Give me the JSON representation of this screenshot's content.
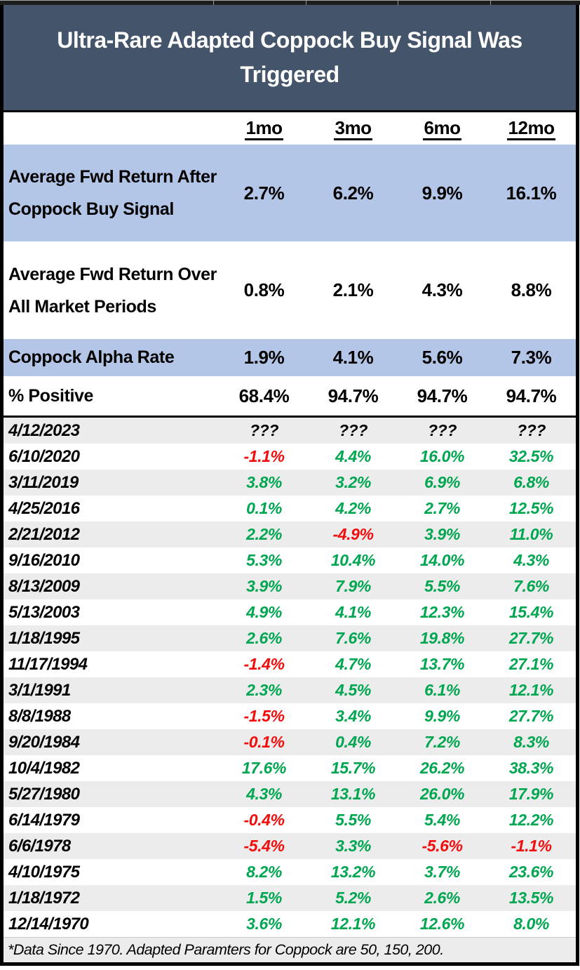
{
  "colors": {
    "header_bg": "#44546A",
    "blue_row": "#B4C6E7",
    "gray_row": "#ECECEC",
    "green": "#00A650",
    "red": "#F20D0D"
  },
  "chart_data": {
    "type": "table",
    "title": "Ultra-Rare Adapted Coppock Buy Signal Was Triggered",
    "columns": [
      "1mo",
      "3mo",
      "6mo",
      "12mo"
    ],
    "summary_rows": [
      {
        "label": "Average Fwd Return After Coppock Buy Signal",
        "values": [
          "2.7%",
          "6.2%",
          "9.9%",
          "16.1%"
        ],
        "highlighted": true
      },
      {
        "label": "Average Fwd Return Over All Market Periods",
        "values": [
          "0.8%",
          "2.1%",
          "4.3%",
          "8.8%"
        ],
        "highlighted": false
      },
      {
        "label": "Coppock Alpha Rate",
        "values": [
          "1.9%",
          "4.1%",
          "5.6%",
          "7.3%"
        ],
        "highlighted": true
      },
      {
        "label": "% Positive",
        "values": [
          "68.4%",
          "94.7%",
          "94.7%",
          "94.7%"
        ],
        "highlighted": false
      }
    ],
    "signal_rows": [
      {
        "date": "4/12/2023",
        "values": [
          "???",
          "???",
          "???",
          "???"
        ]
      },
      {
        "date": "6/10/2020",
        "values": [
          "-1.1%",
          "4.4%",
          "16.0%",
          "32.5%"
        ]
      },
      {
        "date": "3/11/2019",
        "values": [
          "3.8%",
          "3.2%",
          "6.9%",
          "6.8%"
        ]
      },
      {
        "date": "4/25/2016",
        "values": [
          "0.1%",
          "4.2%",
          "2.7%",
          "12.5%"
        ]
      },
      {
        "date": "2/21/2012",
        "values": [
          "2.2%",
          "-4.9%",
          "3.9%",
          "11.0%"
        ]
      },
      {
        "date": "9/16/2010",
        "values": [
          "5.3%",
          "10.4%",
          "14.0%",
          "4.3%"
        ]
      },
      {
        "date": "8/13/2009",
        "values": [
          "3.9%",
          "7.9%",
          "5.5%",
          "7.6%"
        ]
      },
      {
        "date": "5/13/2003",
        "values": [
          "4.9%",
          "4.1%",
          "12.3%",
          "15.4%"
        ]
      },
      {
        "date": "1/18/1995",
        "values": [
          "2.6%",
          "7.6%",
          "19.8%",
          "27.7%"
        ]
      },
      {
        "date": "11/17/1994",
        "values": [
          "-1.4%",
          "4.7%",
          "13.7%",
          "27.1%"
        ]
      },
      {
        "date": "3/1/1991",
        "values": [
          "2.3%",
          "4.5%",
          "6.1%",
          "12.1%"
        ]
      },
      {
        "date": "8/8/1988",
        "values": [
          "-1.5%",
          "3.4%",
          "9.9%",
          "27.7%"
        ]
      },
      {
        "date": "9/20/1984",
        "values": [
          "-0.1%",
          "0.4%",
          "7.2%",
          "8.3%"
        ]
      },
      {
        "date": "10/4/1982",
        "values": [
          "17.6%",
          "15.7%",
          "26.2%",
          "38.3%"
        ]
      },
      {
        "date": "5/27/1980",
        "values": [
          "4.3%",
          "13.1%",
          "26.0%",
          "17.9%"
        ]
      },
      {
        "date": "6/14/1979",
        "values": [
          "-0.4%",
          "5.5%",
          "5.4%",
          "12.2%"
        ]
      },
      {
        "date": "6/6/1978",
        "values": [
          "-5.4%",
          "3.3%",
          "-5.6%",
          "-1.1%"
        ]
      },
      {
        "date": "4/10/1975",
        "values": [
          "8.2%",
          "13.2%",
          "3.7%",
          "23.6%"
        ]
      },
      {
        "date": "1/18/1972",
        "values": [
          "1.5%",
          "5.2%",
          "2.6%",
          "13.5%"
        ]
      },
      {
        "date": "12/14/1970",
        "values": [
          "3.6%",
          "12.1%",
          "12.6%",
          "8.0%"
        ]
      }
    ],
    "footnote": "*Data Since 1970. Adapted Paramters for Coppock are 50, 150, 200."
  }
}
